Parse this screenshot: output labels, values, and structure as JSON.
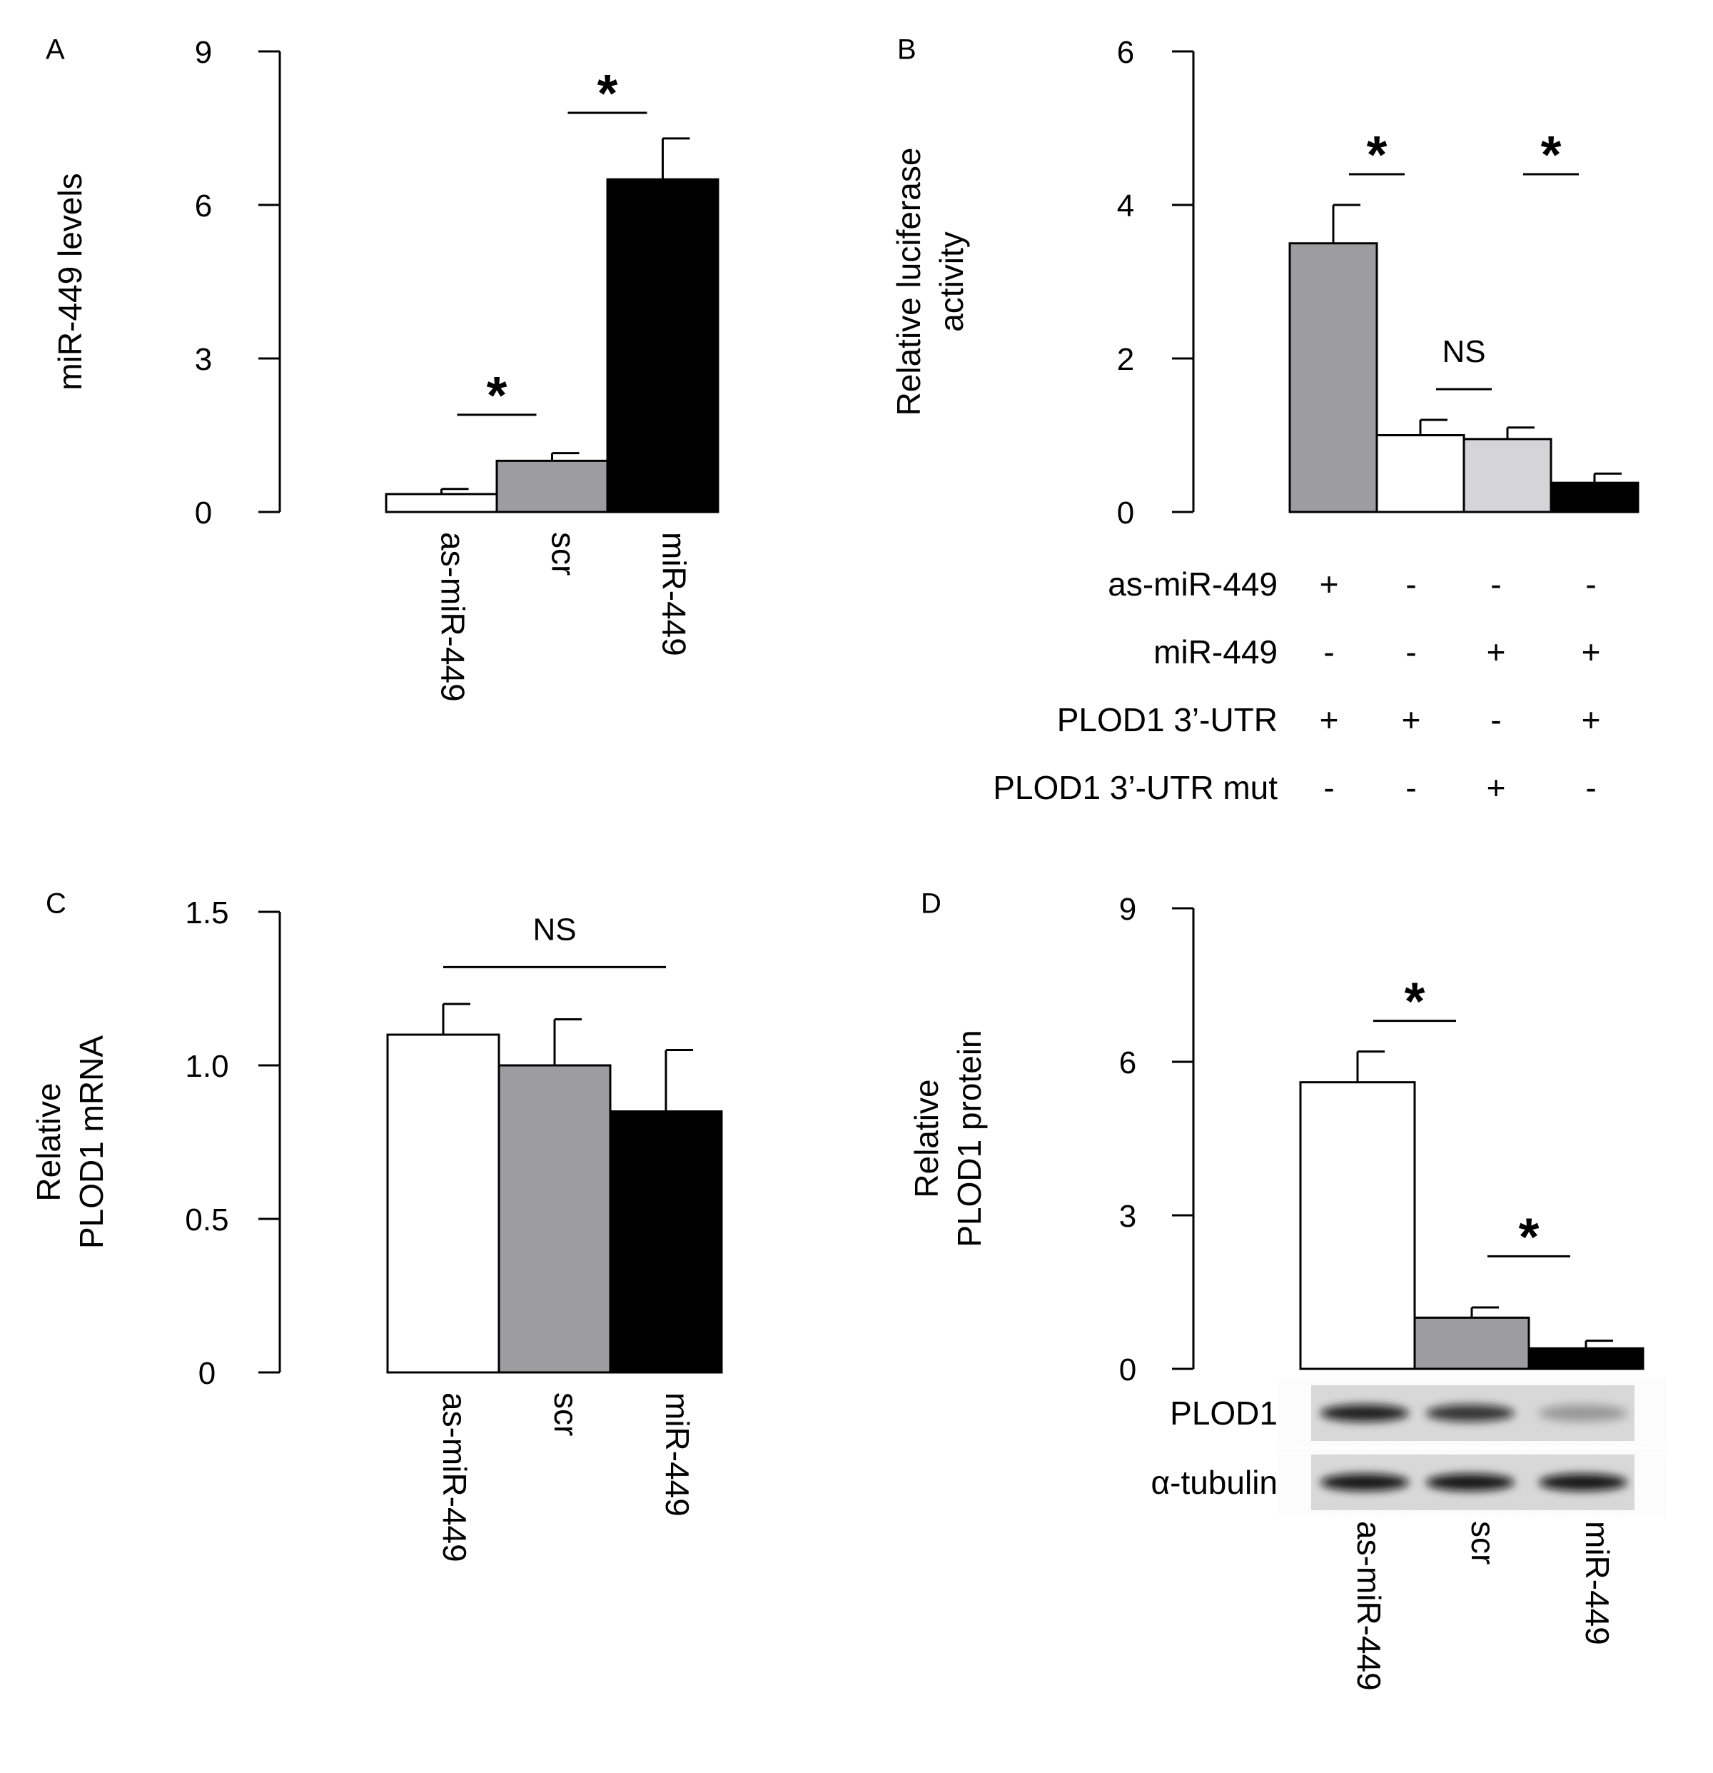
{
  "chart_data": [
    {
      "panel": "A",
      "type": "bar",
      "ylabel": "miR-449 levels",
      "yticks": [
        "0",
        "3",
        "6",
        "9"
      ],
      "ylim": [
        0,
        9
      ],
      "categories": [
        "as-miR-449",
        "scr",
        "miR-449"
      ],
      "values": [
        0.35,
        1.0,
        6.5
      ],
      "errors": [
        0.1,
        0.15,
        0.8
      ],
      "colors": [
        "#ffffff",
        "#9d9da1",
        "#000000"
      ],
      "significance": [
        {
          "from": 0,
          "to": 1,
          "label": "*",
          "y": 1.9
        },
        {
          "from": 1,
          "to": 2,
          "label": "*",
          "y": 7.8
        }
      ]
    },
    {
      "panel": "B",
      "type": "bar",
      "ylabel_lines": [
        "Relative luciferase",
        "activity"
      ],
      "yticks": [
        "0",
        "2",
        "4",
        "6"
      ],
      "ylim": [
        0,
        6
      ],
      "values": [
        3.5,
        1.0,
        0.95,
        0.38
      ],
      "errors": [
        0.5,
        0.2,
        0.15,
        0.12
      ],
      "colors": [
        "#9d9da1",
        "#ffffff",
        "#d5d5d7",
        "#000000"
      ],
      "significance": [
        {
          "from": 0,
          "to": 1,
          "label": "*",
          "y": 4.4
        },
        {
          "from": 1,
          "to": 2,
          "label": "NS",
          "y": 1.6
        },
        {
          "from": 2,
          "to": 3,
          "label": "*",
          "y": 4.4
        }
      ],
      "condition_table": [
        {
          "label": "as-miR-449",
          "marks": [
            "+",
            "-",
            "-",
            "-"
          ]
        },
        {
          "label": "miR-449",
          "marks": [
            "-",
            "-",
            "+",
            "+"
          ]
        },
        {
          "label": "PLOD1 3’-UTR",
          "marks": [
            "+",
            "+",
            "-",
            "+"
          ]
        },
        {
          "label": "PLOD1 3’-UTR mut",
          "marks": [
            "-",
            "-",
            "+",
            "-"
          ]
        }
      ]
    },
    {
      "panel": "C",
      "type": "bar",
      "ylabel_lines": [
        "Relative",
        "PLOD1 mRNA"
      ],
      "yticks": [
        "0",
        "0.5",
        "1.0",
        "1.5"
      ],
      "ylim": [
        0,
        1.5
      ],
      "categories": [
        "as-miR-449",
        "scr",
        "miR-449"
      ],
      "values": [
        1.1,
        1.0,
        0.85
      ],
      "errors": [
        0.1,
        0.15,
        0.2
      ],
      "colors": [
        "#ffffff",
        "#9d9da1",
        "#000000"
      ],
      "significance": [
        {
          "from": 0,
          "to": 2,
          "label": "NS",
          "y": 1.32
        }
      ]
    },
    {
      "panel": "D",
      "type": "bar",
      "ylabel_lines": [
        "Relative",
        "PLOD1 protein"
      ],
      "yticks": [
        "0",
        "3",
        "6",
        "9"
      ],
      "ylim": [
        0,
        9
      ],
      "categories": [
        "as-miR-449",
        "scr",
        "miR-449"
      ],
      "values": [
        5.6,
        1.0,
        0.4
      ],
      "errors": [
        0.6,
        0.2,
        0.15
      ],
      "colors": [
        "#ffffff",
        "#9d9da1",
        "#000000"
      ],
      "significance": [
        {
          "from": 0,
          "to": 1,
          "label": "*",
          "y": 6.8
        },
        {
          "from": 1,
          "to": 2,
          "label": "*",
          "y": 2.2
        }
      ],
      "blot_labels": [
        "PLOD1",
        "α-tubulin"
      ],
      "blot_intensity": [
        [
          0.9,
          0.8,
          0.3
        ],
        [
          0.95,
          0.95,
          0.95
        ]
      ]
    }
  ]
}
